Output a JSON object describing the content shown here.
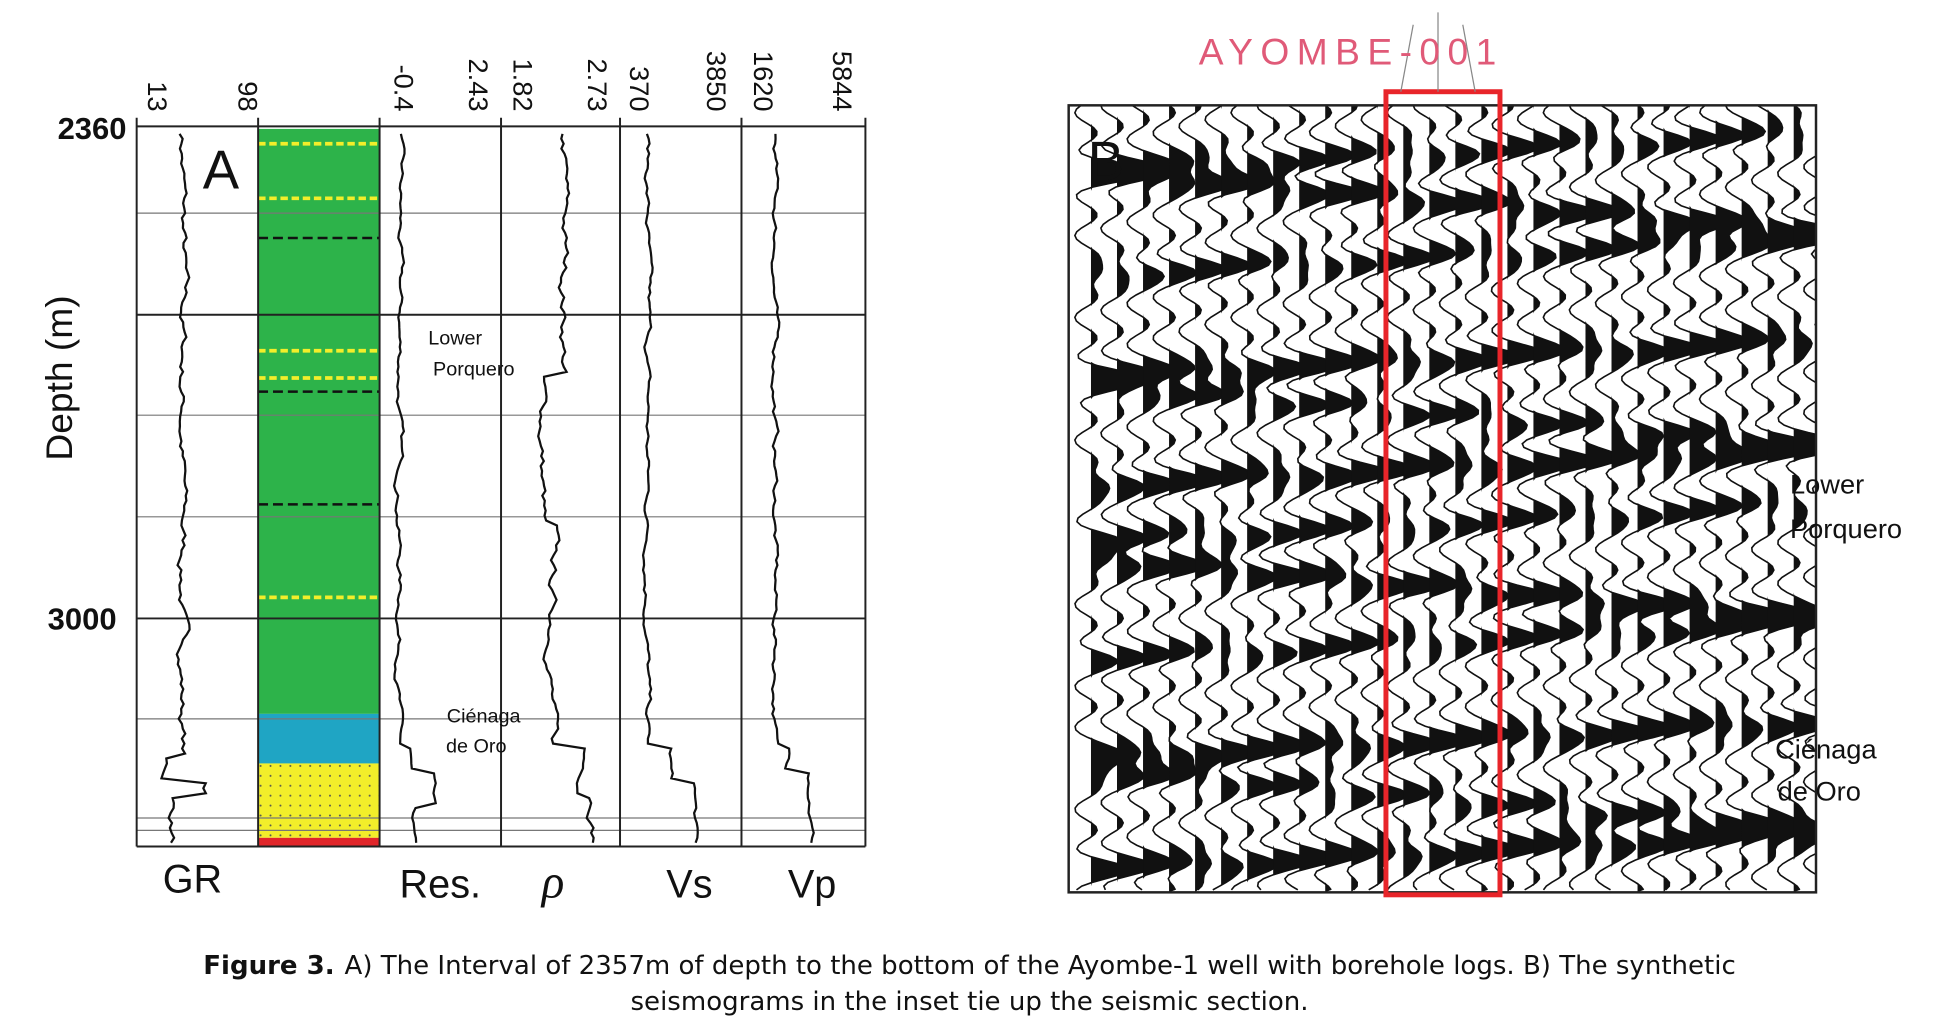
{
  "panel_a": {
    "label": "A",
    "y_axis_title": "Depth (m)",
    "depth_labels": [
      "2360",
      "3000"
    ],
    "scale_labels": [
      "13",
      "98",
      "-0.4",
      "2.43",
      "1.82",
      "2.73",
      "370",
      "3850",
      "1620",
      "5844"
    ],
    "track_titles": [
      "GR",
      "Res.",
      "ρ",
      "Vs",
      "Vp"
    ],
    "formations": [
      [
        "Lower",
        "Porquero"
      ],
      [
        "Ciénaga",
        "de Oro"
      ]
    ]
  },
  "panel_b": {
    "label": "B",
    "well": "AYOMBE-001",
    "formations": [
      [
        "Lower",
        "Porquero"
      ],
      [
        "Ciénaga",
        "de Oro"
      ]
    ]
  },
  "caption": {
    "label": "Figure 3.",
    "lines": [
      "A) The Interval of 2357m of depth to the bottom of the Ayombe-1 well with borehole logs. B) The synthetic",
      "seismograms in the inset tie up the seismic section."
    ]
  }
}
